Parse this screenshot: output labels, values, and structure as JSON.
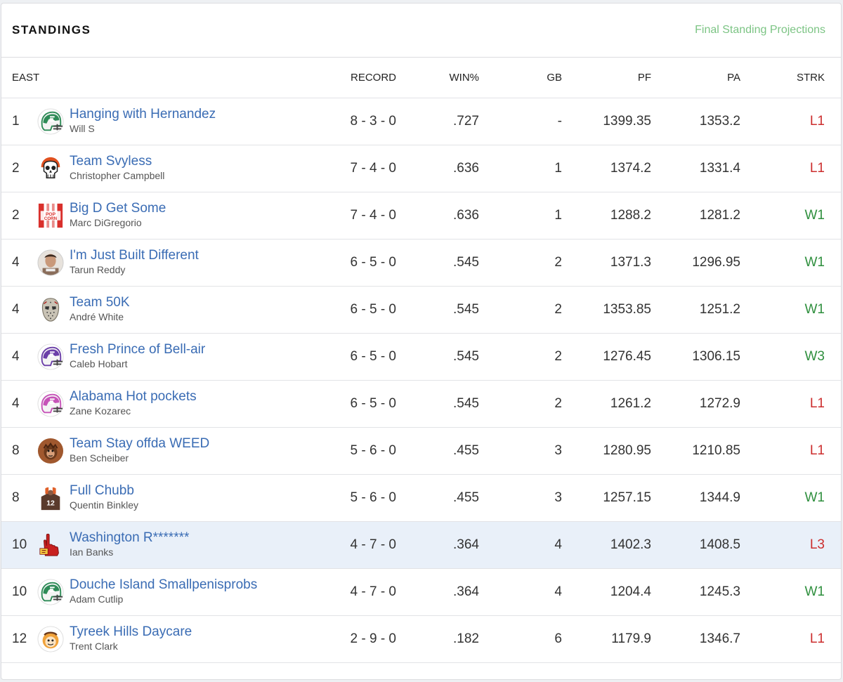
{
  "header": {
    "title": "STANDINGS",
    "projections_link": "Final Standing Projections"
  },
  "table": {
    "columns": {
      "division": "EAST",
      "record": "RECORD",
      "win_pct": "WIN%",
      "gb": "GB",
      "pf": "PF",
      "pa": "PA",
      "strk": "STRK"
    },
    "rows": [
      {
        "rank": "1",
        "team": "Hanging with Hernandez",
        "owner": "Will S",
        "record": "8 - 3 - 0",
        "win_pct": ".727",
        "gb": "-",
        "pf": "1399.35",
        "pa": "1353.2",
        "strk": "L1",
        "logo": "helmet-icon",
        "logo_color": "#2e8b57"
      },
      {
        "rank": "2",
        "team": "Team Svyless",
        "owner": "Christopher Campbell",
        "record": "7 - 4 - 0",
        "win_pct": ".636",
        "gb": "1",
        "pf": "1374.2",
        "pa": "1331.4",
        "strk": "L1",
        "logo": "skull-icon",
        "logo_color": "#e0501f"
      },
      {
        "rank": "2",
        "team": "Big D Get Some",
        "owner": "Marc DiGregorio",
        "record": "7 - 4 - 0",
        "win_pct": ".636",
        "gb": "1",
        "pf": "1288.2",
        "pa": "1281.2",
        "strk": "W1",
        "logo": "popcorn-icon",
        "logo_color": "#d9302c",
        "logo_text": "POP CORN"
      },
      {
        "rank": "4",
        "team": "I'm Just Built Different",
        "owner": "Tarun Reddy",
        "record": "6 - 5 - 0",
        "win_pct": ".545",
        "gb": "2",
        "pf": "1371.3",
        "pa": "1296.95",
        "strk": "W1",
        "logo": "photo-avatar-icon",
        "logo_color": "#8a6d5a"
      },
      {
        "rank": "4",
        "team": "Team 50K",
        "owner": "André White",
        "record": "6 - 5 - 0",
        "win_pct": ".545",
        "gb": "2",
        "pf": "1353.85",
        "pa": "1251.2",
        "strk": "W1",
        "logo": "hockey-mask-icon",
        "logo_color": "#c9c3b5"
      },
      {
        "rank": "4",
        "team": "Fresh Prince of Bell-air",
        "owner": "Caleb Hobart",
        "record": "6 - 5 - 0",
        "win_pct": ".545",
        "gb": "2",
        "pf": "1276.45",
        "pa": "1306.15",
        "strk": "W3",
        "logo": "helmet-icon",
        "logo_color": "#6b3fa8"
      },
      {
        "rank": "4",
        "team": "Alabama Hot pockets",
        "owner": "Zane Kozarec",
        "record": "6 - 5 - 0",
        "win_pct": ".545",
        "gb": "2",
        "pf": "1261.2",
        "pa": "1272.9",
        "strk": "L1",
        "logo": "helmet-icon",
        "logo_color": "#c653b8"
      },
      {
        "rank": "8",
        "team": "Team Stay offda WEED",
        "owner": "Ben Scheiber",
        "record": "5 - 6 - 0",
        "win_pct": ".455",
        "gb": "3",
        "pf": "1280.95",
        "pa": "1210.85",
        "strk": "L1",
        "logo": "bigfoot-icon",
        "logo_color": "#a0582e"
      },
      {
        "rank": "8",
        "team": "Full Chubb",
        "owner": "Quentin Binkley",
        "record": "5 - 6 - 0",
        "win_pct": ".455",
        "gb": "3",
        "pf": "1257.15",
        "pa": "1344.9",
        "strk": "W1",
        "logo": "jersey-player-icon",
        "logo_color": "#5a3a2c",
        "logo_text": "12"
      },
      {
        "rank": "10",
        "team": "Washington R*******",
        "owner": "Ian Banks",
        "record": "4 - 7 - 0",
        "win_pct": ".364",
        "gb": "4",
        "pf": "1402.3",
        "pa": "1408.5",
        "strk": "L3",
        "logo": "foam-finger-icon",
        "logo_color": "#c8201f",
        "highlight": true
      },
      {
        "rank": "10",
        "team": "Douche Island Smallpenisprobs",
        "owner": "Adam Cutlip",
        "record": "4 - 7 - 0",
        "win_pct": ".364",
        "gb": "4",
        "pf": "1204.4",
        "pa": "1245.3",
        "strk": "W1",
        "logo": "helmet-icon",
        "logo_color": "#2e8b57"
      },
      {
        "rank": "12",
        "team": "Tyreek Hills Daycare",
        "owner": "Trent Clark",
        "record": "2 - 9 - 0",
        "win_pct": ".182",
        "gb": "6",
        "pf": "1179.9",
        "pa": "1346.7",
        "strk": "L1",
        "logo": "cartoon-face-icon",
        "logo_color": "#f0a23a"
      }
    ]
  },
  "colors": {
    "link": "#3a6cb4",
    "win": "#2f8f3e",
    "loss": "#cc2e2e",
    "projection_link": "#7cc484",
    "highlight_row": "#e9f0f9"
  }
}
